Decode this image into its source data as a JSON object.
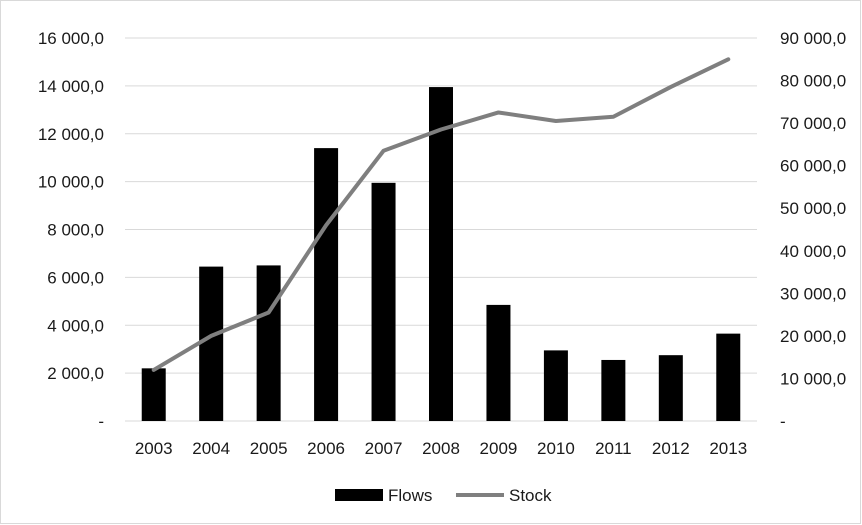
{
  "chart_data": {
    "type": "bar",
    "categories": [
      "2003",
      "2004",
      "2005",
      "2006",
      "2007",
      "2008",
      "2009",
      "2010",
      "2011",
      "2012",
      "2013"
    ],
    "series": [
      {
        "name": "Flows",
        "type": "bar",
        "axis": "left",
        "color": "#000000",
        "values": [
          2200,
          6450,
          6500,
          11400,
          9950,
          13950,
          4850,
          2950,
          2550,
          2750,
          3650
        ]
      },
      {
        "name": "Stock",
        "type": "line",
        "axis": "right",
        "color": "#7f7f7f",
        "values": [
          12000,
          20000,
          25500,
          46000,
          63500,
          68500,
          72500,
          70500,
          71500,
          78500,
          85000
        ]
      }
    ],
    "y_left": {
      "lim": [
        0,
        16000
      ],
      "ticks": [
        0,
        2000,
        4000,
        6000,
        8000,
        10000,
        12000,
        14000,
        16000
      ],
      "tick_labels": [
        "-",
        "2 000,0",
        "4 000,0",
        "6 000,0",
        "8 000,0",
        "10 000,0",
        "12 000,0",
        "14 000,0",
        "16 000,0"
      ]
    },
    "y_right": {
      "lim": [
        0,
        90000
      ],
      "ticks": [
        0,
        10000,
        20000,
        30000,
        40000,
        50000,
        60000,
        70000,
        80000,
        90000
      ],
      "tick_labels": [
        "-",
        "10 000,0",
        "20 000,0",
        "30 000,0",
        "40 000,0",
        "50 000,0",
        "60 000,0",
        "70 000,0",
        "80 000,0",
        "90 000,0"
      ]
    },
    "grid": true,
    "gridColor": "#d9d9d9",
    "legend": {
      "placement": "bottom",
      "entries": [
        "Flows",
        "Stock"
      ]
    }
  }
}
